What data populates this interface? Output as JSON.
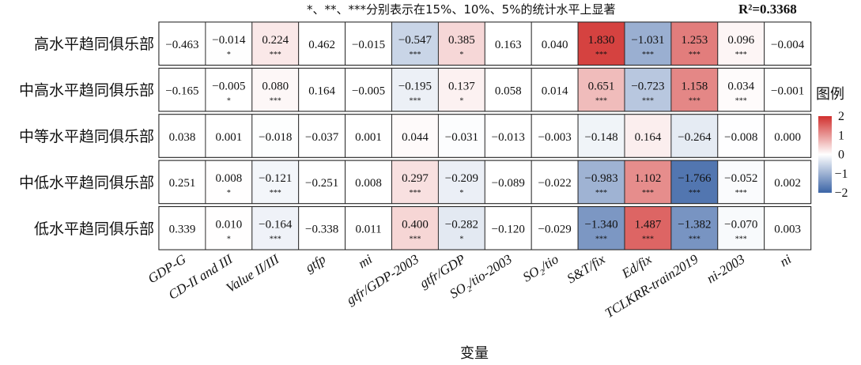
{
  "chart_data": {
    "type": "heatmap",
    "note": "*、**、***分别表示在15%、10%、5%的统计水平上显著",
    "r2_label": "R²=0.3368",
    "xlabel": "变量",
    "rows": [
      "高水平趋同俱乐部",
      "中高水平趋同俱乐部",
      "中等水平趋同俱乐部",
      "中低水平趋同俱乐部",
      "低水平趋同俱乐部"
    ],
    "columns": [
      "GDP-G",
      "CD-II and III",
      "Value II/III",
      "gtfp",
      "mi",
      "gtfr/GDP-2003",
      "gtfr/GDP",
      "SO₂/tio-2003",
      "SO₂/tio",
      "S&T/fix",
      "Ed/fix",
      "TCLKRR-train2019",
      "ni-2003",
      "ni"
    ],
    "values": [
      [
        -0.463,
        -0.014,
        0.224,
        0.462,
        -0.015,
        -0.547,
        0.385,
        0.163,
        0.04,
        1.83,
        -1.031,
        1.253,
        0.096,
        -0.004
      ],
      [
        -0.165,
        -0.005,
        0.08,
        0.164,
        -0.005,
        -0.195,
        0.137,
        0.058,
        0.014,
        0.651,
        -0.723,
        1.158,
        0.034,
        -0.001
      ],
      [
        0.038,
        0.001,
        -0.018,
        -0.037,
        0.001,
        0.044,
        -0.031,
        -0.013,
        -0.003,
        -0.148,
        0.164,
        -0.264,
        -0.008,
        0.0
      ],
      [
        0.251,
        0.008,
        -0.121,
        -0.251,
        0.008,
        0.297,
        -0.209,
        -0.089,
        -0.022,
        -0.983,
        1.102,
        -1.766,
        -0.052,
        0.002
      ],
      [
        0.339,
        0.01,
        -0.164,
        -0.338,
        0.011,
        0.4,
        -0.282,
        -0.12,
        -0.029,
        -1.34,
        1.487,
        -1.382,
        -0.07,
        0.003
      ]
    ],
    "significance": [
      [
        "",
        "*",
        "***",
        "",
        "",
        "***",
        "*",
        "",
        "",
        "***",
        "***",
        "***",
        "***",
        ""
      ],
      [
        "",
        "*",
        "***",
        "",
        "",
        "***",
        "*",
        "",
        "",
        "***",
        "***",
        "***",
        "***",
        ""
      ],
      [
        "",
        "",
        "",
        "",
        "",
        "",
        "",
        "",
        "",
        "",
        "",
        "",
        "",
        ""
      ],
      [
        "",
        "*",
        "***",
        "",
        "",
        "***",
        "*",
        "",
        "",
        "***",
        "***",
        "***",
        "***",
        ""
      ],
      [
        "",
        "*",
        "***",
        "",
        "",
        "***",
        "*",
        "",
        "",
        "***",
        "***",
        "***",
        "***",
        ""
      ]
    ],
    "shaded_columns": [
      1,
      2,
      5,
      6,
      9,
      10,
      11,
      12
    ],
    "colorscale": {
      "min": -2,
      "max": 2,
      "low_color": "#3b64a6",
      "mid_color": "#ffffff",
      "high_color": "#d1302e"
    },
    "legend": {
      "title": "图例",
      "ticks": [
        "2",
        "1",
        "0",
        "−1",
        "−2"
      ],
      "tick_values": [
        2,
        1,
        0,
        -1,
        -2
      ],
      "placement": "right"
    }
  }
}
